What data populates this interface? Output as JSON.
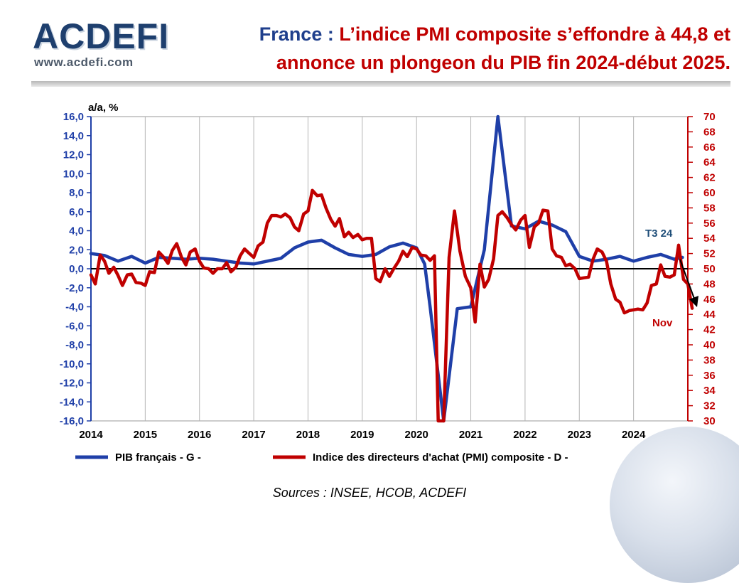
{
  "header": {
    "logo_text": "ACDEFI",
    "logo_url": "www.acdefi.com",
    "title_country": "France :",
    "title_line1": " L’indice PMI composite s’effondre à 44,8 et",
    "title_line2": "annonce un plongeon du PIB fin 2024-début 2025."
  },
  "footer": {
    "source": "Sources : INSEE, HCOB, ACDEFI"
  },
  "colors": {
    "gdp": "#1f3fa8",
    "pmi": "#c00000",
    "title_blue": "#1f3f8c",
    "title_red": "#c00000"
  },
  "chart_data": {
    "type": "line",
    "y_left_label": "a/a, %",
    "y_left_range": [
      -16,
      16
    ],
    "y_left_ticks": [
      "16,0",
      "14,0",
      "12,0",
      "10,0",
      "8,0",
      "6,0",
      "4,0",
      "2,0",
      "0,0",
      "-2,0",
      "-4,0",
      "-6,0",
      "-8,0",
      "-10,0",
      "-12,0",
      "-14,0",
      "-16,0"
    ],
    "y_right_range": [
      30,
      70
    ],
    "y_right_ticks": [
      "70",
      "68",
      "66",
      "64",
      "62",
      "60",
      "58",
      "56",
      "54",
      "52",
      "50",
      "48",
      "46",
      "44",
      "42",
      "40",
      "38",
      "36",
      "34",
      "32",
      "30"
    ],
    "x_range": [
      2014,
      2025
    ],
    "x_ticks": [
      "2014",
      "2015",
      "2016",
      "2017",
      "2018",
      "2019",
      "2020",
      "2021",
      "2022",
      "2023",
      "2024"
    ],
    "grid": "vertical",
    "legend_position": "bottom",
    "annotations": {
      "t3": "T3 24",
      "nov": "Nov"
    },
    "series": [
      {
        "name": "PIB français - G -",
        "axis": "left",
        "points": [
          [
            2014.0,
            1.6
          ],
          [
            2014.25,
            1.4
          ],
          [
            2014.5,
            0.8
          ],
          [
            2014.75,
            1.3
          ],
          [
            2015.0,
            0.6
          ],
          [
            2015.25,
            1.2
          ],
          [
            2015.5,
            1.1
          ],
          [
            2015.75,
            1.0
          ],
          [
            2016.0,
            1.1
          ],
          [
            2016.25,
            1.0
          ],
          [
            2016.5,
            0.8
          ],
          [
            2016.75,
            0.6
          ],
          [
            2017.0,
            0.5
          ],
          [
            2017.25,
            0.8
          ],
          [
            2017.5,
            1.1
          ],
          [
            2017.75,
            2.2
          ],
          [
            2018.0,
            2.8
          ],
          [
            2018.25,
            3.0
          ],
          [
            2018.5,
            2.2
          ],
          [
            2018.75,
            1.5
          ],
          [
            2019.0,
            1.3
          ],
          [
            2019.25,
            1.5
          ],
          [
            2019.5,
            2.3
          ],
          [
            2019.75,
            2.7
          ],
          [
            2020.0,
            2.2
          ],
          [
            2020.15,
            0.5
          ],
          [
            2020.25,
            -4.0
          ],
          [
            2020.5,
            -16.0
          ],
          [
            2020.75,
            -4.2
          ],
          [
            2021.0,
            -4.0
          ],
          [
            2021.25,
            2.0
          ],
          [
            2021.5,
            16.0
          ],
          [
            2021.75,
            4.5
          ],
          [
            2022.0,
            4.2
          ],
          [
            2022.25,
            5.0
          ],
          [
            2022.5,
            4.6
          ],
          [
            2022.75,
            3.9
          ],
          [
            2023.0,
            1.3
          ],
          [
            2023.25,
            0.8
          ],
          [
            2023.5,
            1.0
          ],
          [
            2023.75,
            1.3
          ],
          [
            2024.0,
            0.8
          ],
          [
            2024.25,
            1.2
          ],
          [
            2024.5,
            1.5
          ],
          [
            2024.75,
            1.0
          ],
          [
            2024.9,
            1.2
          ]
        ]
      },
      {
        "name": "Indice des directeurs d'achat (PMI) composite - D -",
        "axis": "right",
        "points": [
          [
            2014.0,
            49.2
          ],
          [
            2014.08,
            48.0
          ],
          [
            2014.17,
            51.8
          ],
          [
            2014.25,
            51.0
          ],
          [
            2014.33,
            49.4
          ],
          [
            2014.42,
            50.2
          ],
          [
            2014.5,
            49.1
          ],
          [
            2014.58,
            47.8
          ],
          [
            2014.67,
            49.2
          ],
          [
            2014.75,
            49.3
          ],
          [
            2014.83,
            48.2
          ],
          [
            2014.92,
            48.1
          ],
          [
            2015.0,
            47.8
          ],
          [
            2015.08,
            49.6
          ],
          [
            2015.17,
            49.5
          ],
          [
            2015.25,
            52.2
          ],
          [
            2015.33,
            51.6
          ],
          [
            2015.42,
            50.7
          ],
          [
            2015.5,
            52.4
          ],
          [
            2015.58,
            53.3
          ],
          [
            2015.67,
            51.5
          ],
          [
            2015.75,
            50.5
          ],
          [
            2015.83,
            52.2
          ],
          [
            2015.92,
            52.6
          ],
          [
            2016.0,
            51.0
          ],
          [
            2016.08,
            50.1
          ],
          [
            2016.17,
            50.0
          ],
          [
            2016.25,
            49.4
          ],
          [
            2016.33,
            50.0
          ],
          [
            2016.42,
            50.0
          ],
          [
            2016.5,
            50.8
          ],
          [
            2016.58,
            49.6
          ],
          [
            2016.67,
            50.2
          ],
          [
            2016.75,
            51.7
          ],
          [
            2016.83,
            52.6
          ],
          [
            2016.92,
            52.0
          ],
          [
            2017.0,
            51.5
          ],
          [
            2017.08,
            53.0
          ],
          [
            2017.17,
            53.5
          ],
          [
            2017.25,
            56.0
          ],
          [
            2017.33,
            57.0
          ],
          [
            2017.42,
            57.0
          ],
          [
            2017.5,
            56.8
          ],
          [
            2017.58,
            57.2
          ],
          [
            2017.67,
            56.7
          ],
          [
            2017.75,
            55.5
          ],
          [
            2017.83,
            55.0
          ],
          [
            2017.92,
            57.2
          ],
          [
            2018.0,
            57.6
          ],
          [
            2018.08,
            60.3
          ],
          [
            2018.17,
            59.6
          ],
          [
            2018.25,
            59.7
          ],
          [
            2018.33,
            58.0
          ],
          [
            2018.42,
            56.5
          ],
          [
            2018.5,
            55.6
          ],
          [
            2018.58,
            56.6
          ],
          [
            2018.67,
            54.2
          ],
          [
            2018.75,
            54.8
          ],
          [
            2018.83,
            54.1
          ],
          [
            2018.92,
            54.5
          ],
          [
            2019.0,
            53.8
          ],
          [
            2019.08,
            54.0
          ],
          [
            2019.17,
            54.0
          ],
          [
            2019.25,
            48.7
          ],
          [
            2019.33,
            48.3
          ],
          [
            2019.42,
            50.0
          ],
          [
            2019.5,
            49.0
          ],
          [
            2019.58,
            50.0
          ],
          [
            2019.67,
            51.0
          ],
          [
            2019.75,
            52.3
          ],
          [
            2019.83,
            51.6
          ],
          [
            2019.92,
            52.8
          ],
          [
            2020.0,
            52.6
          ],
          [
            2020.08,
            51.8
          ],
          [
            2020.17,
            51.7
          ],
          [
            2020.25,
            51.1
          ],
          [
            2020.33,
            51.7
          ],
          [
            2020.4,
            30.0
          ],
          [
            2020.5,
            30.0
          ],
          [
            2020.6,
            51.5
          ],
          [
            2020.7,
            57.6
          ],
          [
            2020.8,
            52.3
          ],
          [
            2020.9,
            49.0
          ],
          [
            2021.0,
            47.5
          ],
          [
            2021.08,
            43.0
          ],
          [
            2021.17,
            50.6
          ],
          [
            2021.25,
            47.6
          ],
          [
            2021.33,
            48.6
          ],
          [
            2021.42,
            51.3
          ],
          [
            2021.5,
            57.0
          ],
          [
            2021.58,
            57.5
          ],
          [
            2021.67,
            56.7
          ],
          [
            2021.75,
            55.8
          ],
          [
            2021.83,
            55.1
          ],
          [
            2021.92,
            56.4
          ],
          [
            2022.0,
            57.0
          ],
          [
            2022.08,
            52.8
          ],
          [
            2022.17,
            55.5
          ],
          [
            2022.25,
            56.0
          ],
          [
            2022.33,
            57.7
          ],
          [
            2022.42,
            57.6
          ],
          [
            2022.5,
            52.6
          ],
          [
            2022.58,
            51.7
          ],
          [
            2022.67,
            51.5
          ],
          [
            2022.75,
            50.4
          ],
          [
            2022.83,
            50.6
          ],
          [
            2022.92,
            50.0
          ],
          [
            2023.0,
            48.7
          ],
          [
            2023.08,
            48.8
          ],
          [
            2023.17,
            48.9
          ],
          [
            2023.25,
            51.2
          ],
          [
            2023.33,
            52.6
          ],
          [
            2023.42,
            52.2
          ],
          [
            2023.5,
            51.0
          ],
          [
            2023.58,
            48.0
          ],
          [
            2023.67,
            46.0
          ],
          [
            2023.75,
            45.6
          ],
          [
            2023.83,
            44.2
          ],
          [
            2023.92,
            44.5
          ],
          [
            2024.0,
            44.6
          ],
          [
            2024.08,
            44.7
          ],
          [
            2024.17,
            44.6
          ],
          [
            2024.25,
            45.5
          ],
          [
            2024.33,
            47.8
          ],
          [
            2024.42,
            48.0
          ],
          [
            2024.5,
            50.5
          ],
          [
            2024.58,
            49.0
          ],
          [
            2024.67,
            48.9
          ],
          [
            2024.75,
            49.2
          ],
          [
            2024.83,
            53.1
          ],
          [
            2024.92,
            48.6
          ],
          [
            2025.0,
            48.0
          ],
          [
            2025.08,
            44.8
          ]
        ]
      }
    ]
  }
}
